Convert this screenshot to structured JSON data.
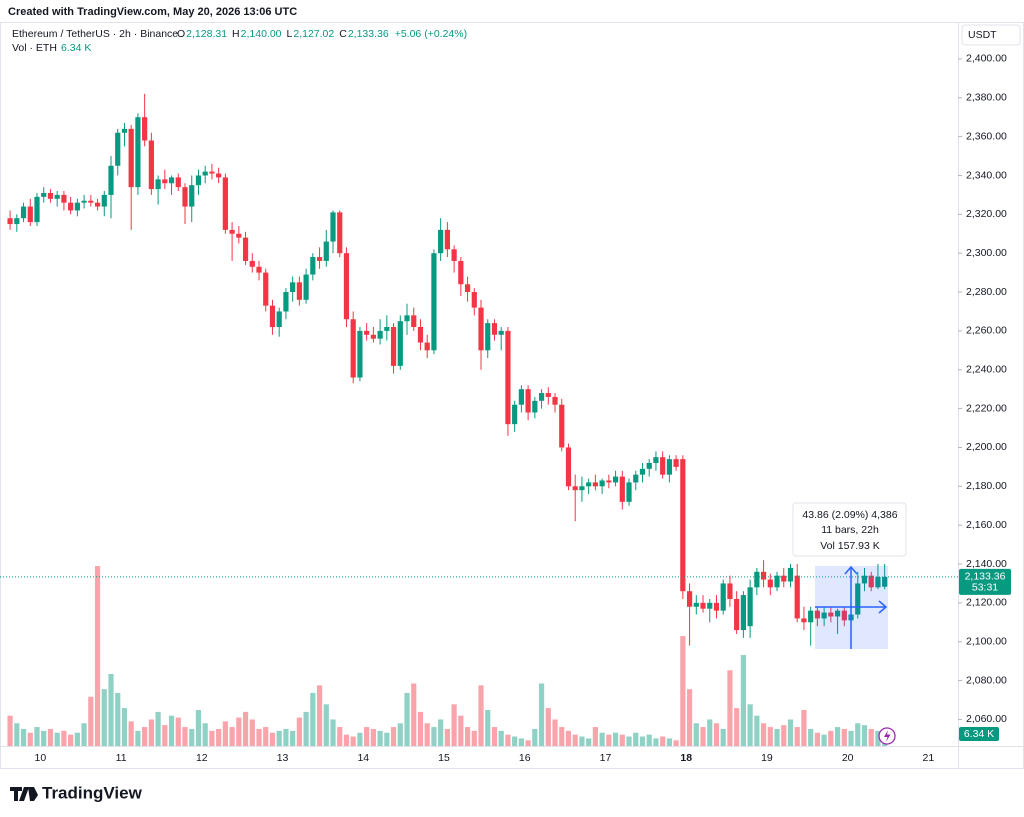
{
  "chart_data": {
    "type": "candlestick",
    "title": "Created with TradingView.com, May 20, 2026 13:06 UTC",
    "symbol": "Ethereum / TetherUS · 2h · Binance",
    "legend": [
      {
        "key": "O",
        "value": "2,128.31"
      },
      {
        "key": "H",
        "value": "2,140.00"
      },
      {
        "key": "L",
        "value": "2,127.02"
      },
      {
        "key": "C",
        "value": "2,133.36"
      },
      {
        "key": "",
        "value": "+5.06 (+0.24%)"
      }
    ],
    "volume_title": "Vol · ETH",
    "last_volume_label": "6.34 K",
    "currency": "USDT",
    "last_price_label": "2,133.36",
    "countdown": "53:31",
    "measure": [
      "43.86 (2.09%) 4,386",
      "11 bars, 22h",
      "Vol 157.93 K"
    ],
    "brand": "TradingView",
    "up_color": "#089981",
    "down_color": "#f23645",
    "ylim": [
      2035,
      2419
    ],
    "yticks": [
      {
        "value": 2060,
        "label": "2,060.00"
      },
      {
        "value": 2080,
        "label": "2,080.00"
      },
      {
        "value": 2100,
        "label": "2,100.00"
      },
      {
        "value": 2120,
        "label": "2,120.00"
      },
      {
        "value": 2140,
        "label": "2,140.00"
      },
      {
        "value": 2160,
        "label": "2,160.00"
      },
      {
        "value": 2180,
        "label": "2,180.00"
      },
      {
        "value": 2200,
        "label": "2,200.00"
      },
      {
        "value": 2220,
        "label": "2,220.00"
      },
      {
        "value": 2240,
        "label": "2,240.00"
      },
      {
        "value": 2260,
        "label": "2,260.00"
      },
      {
        "value": 2280,
        "label": "2,280.00"
      },
      {
        "value": 2300,
        "label": "2,300.00"
      },
      {
        "value": 2320,
        "label": "2,320.00"
      },
      {
        "value": 2340,
        "label": "2,340.00"
      },
      {
        "value": 2360,
        "label": "2,360.00"
      },
      {
        "value": 2380,
        "label": "2,380.00"
      },
      {
        "value": 2400,
        "label": "2,400.00"
      }
    ],
    "xlim": [
      -1.5,
      140.9
    ],
    "xticks": [
      {
        "value": 4.5,
        "label": "10"
      },
      {
        "value": 16.5,
        "label": "11"
      },
      {
        "value": 28.5,
        "label": "12"
      },
      {
        "value": 40.5,
        "label": "13"
      },
      {
        "value": 52.5,
        "label": "14"
      },
      {
        "value": 64.5,
        "label": "15"
      },
      {
        "value": 76.5,
        "label": "16"
      },
      {
        "value": 88.5,
        "label": "17"
      },
      {
        "value": 100.5,
        "label": "18"
      },
      {
        "value": 112.5,
        "label": "19"
      },
      {
        "value": 124.5,
        "label": "20"
      },
      {
        "value": 136.5,
        "label": "21"
      }
    ],
    "ohlc": [
      [
        2318,
        2322,
        2312,
        2315
      ],
      [
        2315,
        2320,
        2311,
        2318
      ],
      [
        2318,
        2326,
        2316,
        2324
      ],
      [
        2324,
        2328,
        2314,
        2316
      ],
      [
        2316,
        2331,
        2314,
        2329
      ],
      [
        2329,
        2334,
        2326,
        2331
      ],
      [
        2331,
        2333,
        2326,
        2328
      ],
      [
        2328,
        2332,
        2324,
        2330
      ],
      [
        2330,
        2332,
        2322,
        2326
      ],
      [
        2326,
        2329,
        2320,
        2322
      ],
      [
        2322,
        2328,
        2319,
        2326
      ],
      [
        2326,
        2330,
        2323,
        2327
      ],
      [
        2327,
        2330,
        2324,
        2326
      ],
      [
        2326,
        2328,
        2322,
        2324
      ],
      [
        2324,
        2332,
        2319,
        2330
      ],
      [
        2330,
        2350,
        2318,
        2345
      ],
      [
        2345,
        2364,
        2340,
        2362
      ],
      [
        2362,
        2367,
        2355,
        2364
      ],
      [
        2364,
        2366,
        2312,
        2334
      ],
      [
        2334,
        2372,
        2330,
        2370
      ],
      [
        2370,
        2382,
        2355,
        2358
      ],
      [
        2358,
        2362,
        2330,
        2333
      ],
      [
        2333,
        2340,
        2325,
        2338
      ],
      [
        2338,
        2343,
        2333,
        2336
      ],
      [
        2336,
        2340,
        2330,
        2339
      ],
      [
        2339,
        2341,
        2332,
        2334
      ],
      [
        2334,
        2336,
        2315,
        2324
      ],
      [
        2324,
        2340,
        2316,
        2335
      ],
      [
        2335,
        2343,
        2330,
        2340
      ],
      [
        2340,
        2345,
        2336,
        2342
      ],
      [
        2342,
        2346,
        2338,
        2341
      ],
      [
        2341,
        2344,
        2336,
        2339
      ],
      [
        2339,
        2341,
        2310,
        2312
      ],
      [
        2312,
        2316,
        2296,
        2310
      ],
      [
        2310,
        2314,
        2305,
        2308
      ],
      [
        2308,
        2311,
        2294,
        2296
      ],
      [
        2296,
        2300,
        2290,
        2293
      ],
      [
        2293,
        2296,
        2286,
        2290
      ],
      [
        2290,
        2292,
        2270,
        2273
      ],
      [
        2273,
        2276,
        2258,
        2262
      ],
      [
        2262,
        2272,
        2257,
        2270
      ],
      [
        2270,
        2282,
        2266,
        2280
      ],
      [
        2280,
        2288,
        2275,
        2285
      ],
      [
        2285,
        2288,
        2273,
        2276
      ],
      [
        2276,
        2292,
        2274,
        2289
      ],
      [
        2289,
        2300,
        2286,
        2298
      ],
      [
        2298,
        2303,
        2292,
        2296
      ],
      [
        2296,
        2312,
        2293,
        2306
      ],
      [
        2306,
        2322,
        2300,
        2321
      ],
      [
        2321,
        2322,
        2298,
        2300
      ],
      [
        2300,
        2303,
        2262,
        2266
      ],
      [
        2266,
        2270,
        2233,
        2236
      ],
      [
        2236,
        2262,
        2234,
        2260
      ],
      [
        2260,
        2264,
        2255,
        2258
      ],
      [
        2258,
        2262,
        2254,
        2256
      ],
      [
        2256,
        2266,
        2253,
        2260
      ],
      [
        2260,
        2268,
        2255,
        2262
      ],
      [
        2262,
        2264,
        2238,
        2242
      ],
      [
        2242,
        2268,
        2240,
        2265
      ],
      [
        2265,
        2274,
        2258,
        2268
      ],
      [
        2268,
        2272,
        2260,
        2262
      ],
      [
        2262,
        2266,
        2250,
        2254
      ],
      [
        2254,
        2258,
        2246,
        2250
      ],
      [
        2250,
        2302,
        2248,
        2300
      ],
      [
        2300,
        2318,
        2296,
        2312
      ],
      [
        2312,
        2316,
        2298,
        2302
      ],
      [
        2302,
        2304,
        2290,
        2296
      ],
      [
        2296,
        2298,
        2278,
        2284
      ],
      [
        2284,
        2288,
        2275,
        2280
      ],
      [
        2280,
        2282,
        2268,
        2272
      ],
      [
        2272,
        2276,
        2240,
        2250
      ],
      [
        2250,
        2266,
        2246,
        2264
      ],
      [
        2264,
        2266,
        2255,
        2258
      ],
      [
        2258,
        2262,
        2250,
        2260
      ],
      [
        2260,
        2262,
        2206,
        2212
      ],
      [
        2212,
        2224,
        2208,
        2222
      ],
      [
        2222,
        2232,
        2218,
        2230
      ],
      [
        2230,
        2232,
        2214,
        2218
      ],
      [
        2218,
        2226,
        2215,
        2224
      ],
      [
        2224,
        2230,
        2220,
        2228
      ],
      [
        2228,
        2231,
        2222,
        2226
      ],
      [
        2226,
        2228,
        2218,
        2222
      ],
      [
        2222,
        2225,
        2198,
        2200
      ],
      [
        2200,
        2202,
        2178,
        2180
      ],
      [
        2180,
        2186,
        2162,
        2178
      ],
      [
        2178,
        2185,
        2172,
        2180
      ],
      [
        2180,
        2184,
        2176,
        2182
      ],
      [
        2182,
        2186,
        2178,
        2180
      ],
      [
        2180,
        2184,
        2176,
        2183
      ],
      [
        2183,
        2186,
        2179,
        2182
      ],
      [
        2182,
        2188,
        2180,
        2185
      ],
      [
        2185,
        2188,
        2168,
        2172
      ],
      [
        2172,
        2184,
        2170,
        2182
      ],
      [
        2182,
        2188,
        2178,
        2186
      ],
      [
        2186,
        2192,
        2182,
        2189
      ],
      [
        2189,
        2194,
        2185,
        2192
      ],
      [
        2192,
        2198,
        2188,
        2195
      ],
      [
        2195,
        2198,
        2184,
        2186
      ],
      [
        2186,
        2196,
        2182,
        2194
      ],
      [
        2194,
        2196,
        2188,
        2190
      ],
      [
        2194,
        2196,
        2122,
        2126
      ],
      [
        2126,
        2130,
        2098,
        2118
      ],
      [
        2118,
        2124,
        2114,
        2120
      ],
      [
        2120,
        2124,
        2115,
        2117
      ],
      [
        2117,
        2122,
        2110,
        2120
      ],
      [
        2120,
        2124,
        2112,
        2116
      ],
      [
        2116,
        2132,
        2114,
        2130
      ],
      [
        2130,
        2134,
        2118,
        2122
      ],
      [
        2122,
        2126,
        2104,
        2106
      ],
      [
        2106,
        2126,
        2102,
        2124
      ],
      [
        2108,
        2132,
        2102,
        2128
      ],
      [
        2128,
        2138,
        2124,
        2136
      ],
      [
        2136,
        2142,
        2128,
        2132
      ],
      [
        2132,
        2135,
        2124,
        2128
      ],
      [
        2128,
        2136,
        2126,
        2134
      ],
      [
        2134,
        2138,
        2128,
        2131
      ],
      [
        2131,
        2140,
        2128,
        2138
      ],
      [
        2134,
        2140,
        2110,
        2112
      ],
      [
        2112,
        2118,
        2106,
        2110
      ],
      [
        2110,
        2118,
        2098,
        2116
      ],
      [
        2116,
        2118,
        2108,
        2112
      ],
      [
        2112,
        2118,
        2108,
        2115
      ],
      [
        2115,
        2118,
        2110,
        2113
      ],
      [
        2113,
        2117,
        2104,
        2116
      ],
      [
        2116,
        2118,
        2108,
        2111
      ],
      [
        2111,
        2120,
        2104,
        2114
      ],
      [
        2114,
        2136,
        2112,
        2130
      ],
      [
        2130,
        2138,
        2126,
        2134
      ],
      [
        2134,
        2136,
        2126,
        2128
      ],
      [
        2128,
        2140,
        2127.02,
        2133.36
      ],
      [
        2128.31,
        2140,
        2127.02,
        2133.36
      ]
    ],
    "volume": [
      16000,
      12000,
      9000,
      7000,
      10000,
      8000,
      9000,
      7000,
      8000,
      6000,
      7000,
      12000,
      26000,
      95000,
      30000,
      38000,
      28000,
      20000,
      13000,
      8000,
      10000,
      14000,
      18000,
      11000,
      16000,
      15000,
      10000,
      9000,
      19000,
      12000,
      8000,
      9000,
      13000,
      10000,
      15000,
      18000,
      14000,
      9000,
      10000,
      7000,
      8000,
      9000,
      8000,
      15000,
      18000,
      28000,
      32000,
      22000,
      14000,
      10000,
      6000,
      5000,
      7000,
      10000,
      9000,
      8000,
      7000,
      10000,
      12000,
      28000,
      33000,
      18000,
      12000,
      10000,
      14000,
      9000,
      22000,
      16000,
      10000,
      8000,
      32000,
      19000,
      10000,
      8000,
      6000,
      5000,
      4000,
      3000,
      9000,
      33000,
      20000,
      14000,
      10000,
      8000,
      6000,
      5000,
      4000,
      10000,
      7000,
      6000,
      7000,
      6000,
      5000,
      7000,
      5000,
      6000,
      4000,
      5000,
      4000,
      3000,
      58000,
      30000,
      12000,
      10000,
      14000,
      12000,
      9000,
      40000,
      20000,
      48000,
      22000,
      16000,
      12000,
      10000,
      9000,
      11000,
      14000,
      10000,
      19000,
      9000,
      7000,
      6000,
      8000,
      10000,
      9000,
      8000,
      12000,
      11000,
      9000,
      8000,
      6340
    ]
  }
}
